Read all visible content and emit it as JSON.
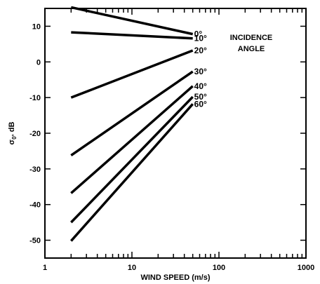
{
  "chart_data": {
    "type": "line",
    "title": "",
    "xlabel": "WIND SPEED (m/s)",
    "ylabel_main": "σ",
    "ylabel_sub": "0°",
    "ylabel_unit": " dB",
    "xscale": "log",
    "xlim": [
      1,
      1000
    ],
    "ylim": [
      -55,
      15
    ],
    "x_ticks": [
      1,
      10,
      100,
      1000
    ],
    "x_tick_labels": [
      "1",
      "10",
      "100",
      "1000"
    ],
    "y_ticks": [
      10,
      0,
      -10,
      -20,
      -30,
      -40,
      -50
    ],
    "y_tick_labels": [
      "10",
      "0",
      "-10",
      "-20",
      "-30",
      "-40",
      "-50"
    ],
    "legend_title_lines": [
      "INCIDENCE",
      "ANGLE"
    ],
    "grid": false,
    "series": [
      {
        "name": "0°",
        "x": [
          2,
          50
        ],
        "y": [
          15.3,
          7.8
        ]
      },
      {
        "name": "10°",
        "x": [
          2,
          50
        ],
        "y": [
          8.3,
          6.6
        ]
      },
      {
        "name": "20°",
        "x": [
          2,
          50
        ],
        "y": [
          -10.0,
          3.2
        ]
      },
      {
        "name": "30°",
        "x": [
          2,
          50
        ],
        "y": [
          -26.2,
          -2.7
        ]
      },
      {
        "name": "40°",
        "x": [
          2,
          50
        ],
        "y": [
          -36.8,
          -6.8
        ]
      },
      {
        "name": "50°",
        "x": [
          2,
          50
        ],
        "y": [
          -45.0,
          -9.8
        ]
      },
      {
        "name": "60°",
        "x": [
          2,
          50
        ],
        "y": [
          -50.2,
          -11.8
        ]
      }
    ]
  }
}
